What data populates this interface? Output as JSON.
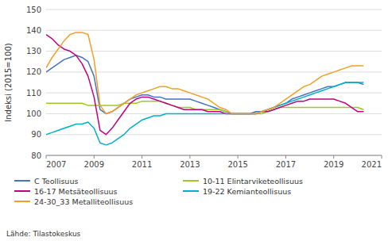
{
  "chart_data": {
    "type": "line",
    "y_label": "Indeksi (2015=100)",
    "source": "Lähde: Tilastokeskus",
    "xlim": [
      2007.0,
      2021.0
    ],
    "xticks": [
      2007,
      2009,
      2011,
      2013,
      2015,
      2017,
      2019,
      2021
    ],
    "ylim": [
      80,
      150
    ],
    "yticks": [
      80,
      90,
      100,
      110,
      120,
      130,
      140,
      150
    ],
    "grid": true,
    "legend": "bottom",
    "x": [
      2007.0,
      2007.25,
      2007.5,
      2007.75,
      2008.0,
      2008.25,
      2008.5,
      2008.75,
      2009.0,
      2009.25,
      2009.5,
      2009.75,
      2010.0,
      2010.25,
      2010.5,
      2010.75,
      2011.0,
      2011.25,
      2011.5,
      2011.75,
      2012.0,
      2012.25,
      2012.5,
      2012.75,
      2013.0,
      2013.25,
      2013.5,
      2013.75,
      2014.0,
      2014.25,
      2014.5,
      2014.75,
      2015.0,
      2015.25,
      2015.5,
      2015.75,
      2016.0,
      2016.25,
      2016.5,
      2016.75,
      2017.0,
      2017.25,
      2017.5,
      2017.75,
      2018.0,
      2018.25,
      2018.5,
      2018.75,
      2019.0,
      2019.25,
      2019.5,
      2019.75,
      2020.0,
      2020.25
    ],
    "series": [
      {
        "name": "C Teollisuus",
        "color": "#4472c4",
        "values": [
          120,
          122,
          124,
          126,
          127,
          128,
          127,
          125,
          118,
          102,
          100,
          101,
          103,
          105,
          107,
          108,
          109,
          109,
          108,
          108,
          107,
          107,
          107,
          107,
          107,
          106,
          105,
          104,
          103,
          102,
          101,
          100,
          100,
          100,
          100,
          101,
          101,
          102,
          103,
          104,
          105,
          107,
          108,
          109,
          110,
          111,
          112,
          113,
          113,
          114,
          115,
          115,
          115,
          114
        ]
      },
      {
        "name": "10-11 Elintarviketeollisuus",
        "color": "#9dc82a",
        "values": [
          105,
          105,
          105,
          105,
          105,
          105,
          105,
          104,
          104,
          104,
          104,
          104,
          104,
          105,
          105,
          105,
          106,
          106,
          106,
          106,
          105,
          104,
          103,
          103,
          103,
          102,
          102,
          102,
          102,
          102,
          101,
          100,
          100,
          100,
          100,
          100,
          100,
          101,
          102,
          103,
          103,
          103,
          103,
          103,
          103,
          103,
          103,
          103,
          103,
          103,
          103,
          103,
          103,
          102
        ]
      },
      {
        "name": "16-17 Metsäteollisuus",
        "color": "#c00080",
        "values": [
          138,
          136,
          133,
          131,
          130,
          128,
          124,
          118,
          108,
          92,
          90,
          93,
          97,
          101,
          105,
          107,
          108,
          108,
          107,
          106,
          105,
          104,
          103,
          102,
          102,
          102,
          102,
          101,
          101,
          101,
          100,
          100,
          100,
          100,
          100,
          100,
          101,
          101,
          102,
          103,
          104,
          105,
          106,
          106,
          107,
          107,
          107,
          107,
          107,
          106,
          105,
          103,
          101,
          101
        ]
      },
      {
        "name": "19-22 Kemianteollisuus",
        "color": "#00b0c8",
        "values": [
          90,
          91,
          92,
          93,
          94,
          95,
          95,
          96,
          93,
          86,
          85,
          86,
          88,
          90,
          93,
          95,
          97,
          98,
          99,
          99,
          100,
          100,
          100,
          100,
          100,
          100,
          100,
          100,
          100,
          100,
          100,
          100,
          100,
          100,
          100,
          100,
          101,
          102,
          103,
          104,
          105,
          106,
          107,
          108,
          109,
          110,
          111,
          112,
          113,
          114,
          115,
          115,
          115,
          115
        ]
      },
      {
        "name": "24-30_33 Metalliteollisuus",
        "color": "#f0a028",
        "values": [
          122,
          127,
          131,
          135,
          138,
          139,
          139,
          138,
          126,
          104,
          100,
          101,
          103,
          105,
          107,
          109,
          110,
          111,
          112,
          113,
          113,
          112,
          112,
          111,
          110,
          109,
          108,
          107,
          105,
          103,
          102,
          100,
          100,
          100,
          100,
          100,
          101,
          102,
          103,
          105,
          107,
          109,
          111,
          113,
          114,
          116,
          118,
          119,
          120,
          121,
          122,
          123,
          123,
          123
        ]
      }
    ]
  }
}
